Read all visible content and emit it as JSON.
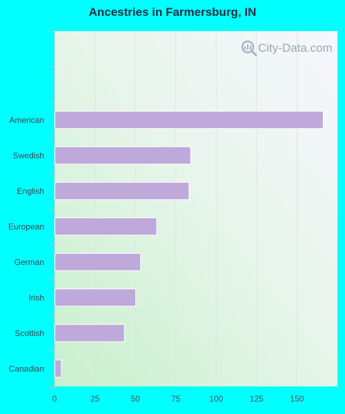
{
  "chart_data": {
    "type": "bar",
    "orientation": "horizontal",
    "title": "Ancestries in Farmersburg, IN",
    "categories": [
      "American",
      "Swedish",
      "English",
      "European",
      "German",
      "Irish",
      "Scottish",
      "Canadian"
    ],
    "values": [
      166,
      84,
      83,
      63,
      53,
      50,
      43,
      4
    ],
    "xlim": [
      0,
      175
    ],
    "xticks": [
      0,
      25,
      50,
      75,
      100,
      125,
      150
    ],
    "xlabel": "",
    "ylabel": "",
    "grid": "vertical",
    "bar_color": "#bfa8da",
    "background_color": "#00ffff"
  },
  "watermark": "City-Data.com"
}
